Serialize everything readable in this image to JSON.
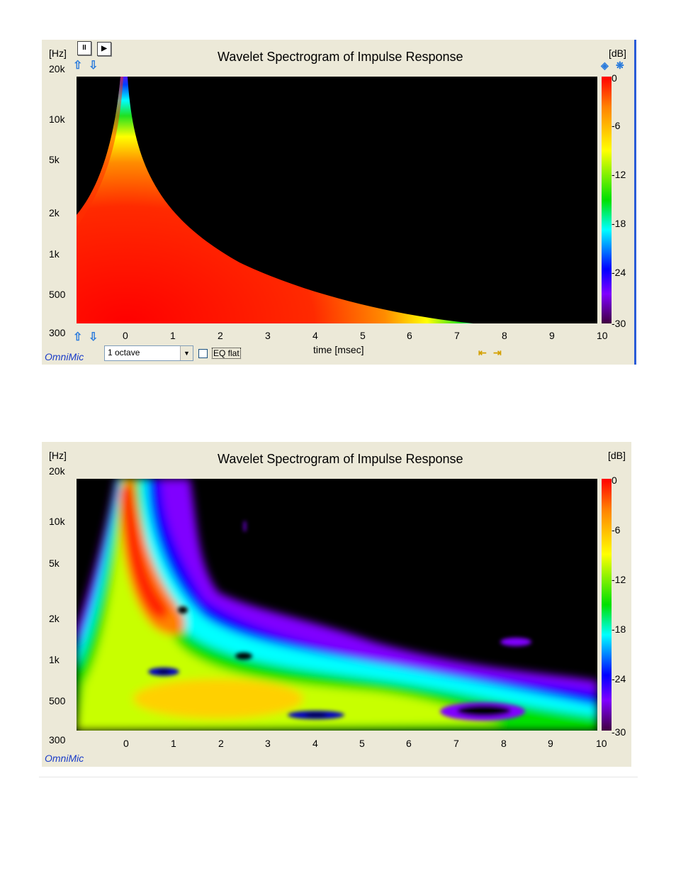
{
  "charts": [
    {
      "title": "Wavelet Spectrogram of Impulse Response",
      "y_unit": "[Hz]",
      "y_top": "20k",
      "y_bottom": "300",
      "y_ticks": [
        "10k",
        "5k",
        "2k",
        "1k",
        "500"
      ],
      "x_ticks": [
        "0",
        "1",
        "2",
        "3",
        "4",
        "5",
        "6",
        "7",
        "8",
        "9",
        "10"
      ],
      "xlabel": "time [msec]",
      "colorbar_unit": "[dB]",
      "colorbar_ticks": [
        "0",
        "-6",
        "-12",
        "-18",
        "-24",
        "-30"
      ],
      "brand": "OmniMic"
    },
    {
      "title": "Wavelet Spectrogram of Impulse Response",
      "y_unit": "[Hz]",
      "y_top": "20k",
      "y_bottom": "300",
      "y_ticks": [
        "10k",
        "5k",
        "2k",
        "1k",
        "500"
      ],
      "x_ticks": [
        "0",
        "1",
        "2",
        "3",
        "4",
        "5",
        "6",
        "7",
        "8",
        "9",
        "10"
      ],
      "colorbar_unit": "[dB]",
      "colorbar_ticks": [
        "0",
        "-6",
        "-12",
        "-18",
        "-24",
        "-30"
      ],
      "brand": "OmniMic"
    }
  ],
  "controls": {
    "resolution_value": "1 octave",
    "eq_flat_label": "EQ flat",
    "pause_icon": "pause-icon",
    "play_icon": "play-icon"
  },
  "chart_data": [
    {
      "type": "heatmap",
      "title": "Wavelet Spectrogram of Impulse Response",
      "xlabel": "time [msec]",
      "ylabel": "[Hz]",
      "xlim": [
        -1,
        10
      ],
      "ylim": [
        300,
        20000
      ],
      "yscale": "log",
      "colorbar": {
        "label": "[dB]",
        "range": [
          -30,
          0
        ],
        "ticks": [
          0,
          -6,
          -12,
          -18,
          -24,
          -30
        ]
      }
    },
    {
      "type": "heatmap",
      "title": "Wavelet Spectrogram of Impulse Response",
      "xlabel": "",
      "ylabel": "[Hz]",
      "xlim": [
        -1,
        10
      ],
      "ylim": [
        300,
        20000
      ],
      "yscale": "log",
      "colorbar": {
        "label": "[dB]",
        "range": [
          -30,
          0
        ],
        "ticks": [
          0,
          -6,
          -12,
          -18,
          -24,
          -30
        ]
      }
    }
  ]
}
